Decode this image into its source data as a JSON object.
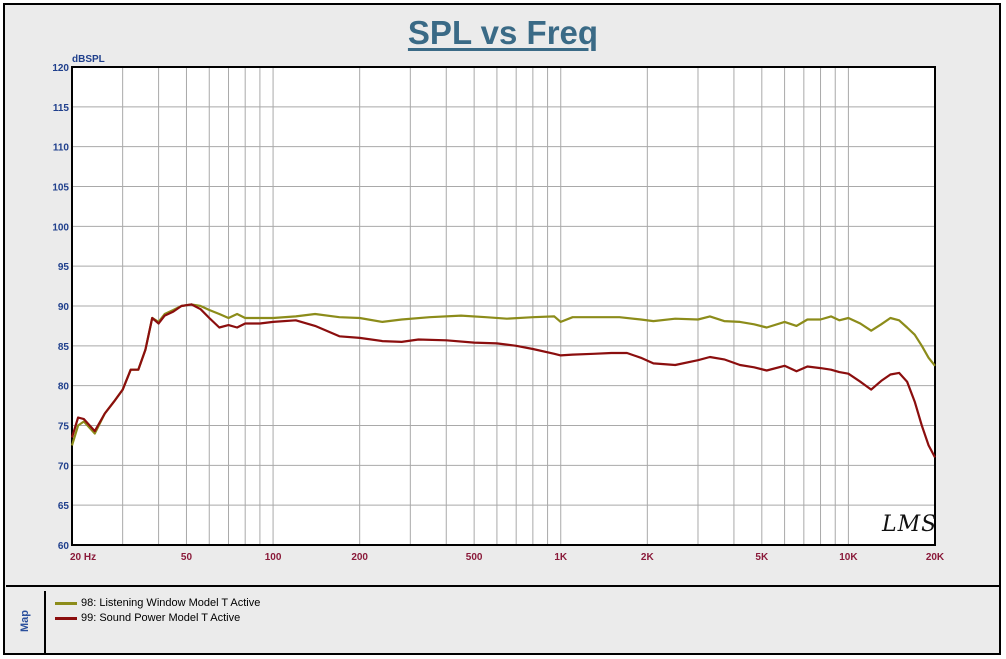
{
  "chart_data": {
    "type": "line",
    "title": "SPL vs Freq",
    "ylabel": "dBSPL",
    "xscale": "log",
    "xlim": [
      20,
      20000
    ],
    "ylim": [
      60,
      120
    ],
    "y_ticks": [
      60,
      65,
      70,
      75,
      80,
      85,
      90,
      95,
      100,
      105,
      110,
      115,
      120
    ],
    "x_ticks": [
      {
        "value": 20,
        "label": "20  Hz"
      },
      {
        "value": 50,
        "label": "50"
      },
      {
        "value": 100,
        "label": "100"
      },
      {
        "value": 200,
        "label": "200"
      },
      {
        "value": 500,
        "label": "500"
      },
      {
        "value": 1000,
        "label": "1K"
      },
      {
        "value": 2000,
        "label": "2K"
      },
      {
        "value": 5000,
        "label": "5K"
      },
      {
        "value": 10000,
        "label": "10K"
      },
      {
        "value": 20000,
        "label": "20K"
      }
    ],
    "grid": true,
    "legend_position": "bottom",
    "series": [
      {
        "name": "98: Listening Window Model T Active",
        "color": "#8c8c1a",
        "points": [
          [
            20,
            72.5
          ],
          [
            21,
            75
          ],
          [
            22,
            75.5
          ],
          [
            24,
            74
          ],
          [
            26,
            76.5
          ],
          [
            28,
            78
          ],
          [
            30,
            79.5
          ],
          [
            32,
            82
          ],
          [
            34,
            82
          ],
          [
            36,
            84.5
          ],
          [
            38,
            88.5
          ],
          [
            40,
            88
          ],
          [
            42,
            89
          ],
          [
            45,
            89.5
          ],
          [
            48,
            90
          ],
          [
            52,
            90.2
          ],
          [
            56,
            90
          ],
          [
            60,
            89.5
          ],
          [
            65,
            89
          ],
          [
            70,
            88.5
          ],
          [
            75,
            89
          ],
          [
            80,
            88.5
          ],
          [
            90,
            88.5
          ],
          [
            100,
            88.5
          ],
          [
            120,
            88.7
          ],
          [
            140,
            89
          ],
          [
            170,
            88.6
          ],
          [
            200,
            88.5
          ],
          [
            240,
            88
          ],
          [
            280,
            88.3
          ],
          [
            350,
            88.6
          ],
          [
            450,
            88.8
          ],
          [
            550,
            88.6
          ],
          [
            650,
            88.4
          ],
          [
            800,
            88.6
          ],
          [
            950,
            88.7
          ],
          [
            1000,
            88
          ],
          [
            1100,
            88.6
          ],
          [
            1300,
            88.6
          ],
          [
            1600,
            88.6
          ],
          [
            1900,
            88.3
          ],
          [
            2100,
            88.1
          ],
          [
            2500,
            88.4
          ],
          [
            3000,
            88.3
          ],
          [
            3300,
            88.7
          ],
          [
            3700,
            88.1
          ],
          [
            4200,
            88
          ],
          [
            4700,
            87.7
          ],
          [
            5200,
            87.3
          ],
          [
            6000,
            88
          ],
          [
            6600,
            87.5
          ],
          [
            7200,
            88.3
          ],
          [
            8000,
            88.3
          ],
          [
            8700,
            88.7
          ],
          [
            9300,
            88.2
          ],
          [
            10000,
            88.5
          ],
          [
            11000,
            87.8
          ],
          [
            12000,
            86.9
          ],
          [
            13000,
            87.7
          ],
          [
            14000,
            88.5
          ],
          [
            15000,
            88.2
          ],
          [
            16000,
            87.3
          ],
          [
            17000,
            86.4
          ],
          [
            18000,
            85
          ],
          [
            19000,
            83.5
          ],
          [
            20000,
            82.5
          ]
        ]
      },
      {
        "name": "99: Sound Power Model T Active",
        "color": "#8b0e0e",
        "points": [
          [
            20,
            73.5
          ],
          [
            21,
            76
          ],
          [
            22,
            75.8
          ],
          [
            24,
            74.3
          ],
          [
            26,
            76.5
          ],
          [
            28,
            78
          ],
          [
            30,
            79.5
          ],
          [
            32,
            82
          ],
          [
            34,
            82
          ],
          [
            36,
            84.5
          ],
          [
            38,
            88.5
          ],
          [
            40,
            87.8
          ],
          [
            42,
            88.8
          ],
          [
            45,
            89.3
          ],
          [
            48,
            90
          ],
          [
            52,
            90.2
          ],
          [
            56,
            89.6
          ],
          [
            60,
            88.5
          ],
          [
            65,
            87.3
          ],
          [
            70,
            87.6
          ],
          [
            75,
            87.3
          ],
          [
            80,
            87.8
          ],
          [
            90,
            87.8
          ],
          [
            100,
            88
          ],
          [
            120,
            88.2
          ],
          [
            140,
            87.5
          ],
          [
            170,
            86.2
          ],
          [
            200,
            86
          ],
          [
            240,
            85.6
          ],
          [
            280,
            85.5
          ],
          [
            320,
            85.8
          ],
          [
            400,
            85.7
          ],
          [
            500,
            85.4
          ],
          [
            600,
            85.3
          ],
          [
            700,
            85
          ],
          [
            800,
            84.6
          ],
          [
            950,
            84
          ],
          [
            1000,
            83.8
          ],
          [
            1100,
            83.9
          ],
          [
            1300,
            84
          ],
          [
            1500,
            84.1
          ],
          [
            1700,
            84.1
          ],
          [
            1900,
            83.5
          ],
          [
            2100,
            82.8
          ],
          [
            2500,
            82.6
          ],
          [
            3000,
            83.2
          ],
          [
            3300,
            83.6
          ],
          [
            3700,
            83.3
          ],
          [
            4200,
            82.6
          ],
          [
            4700,
            82.3
          ],
          [
            5200,
            81.9
          ],
          [
            6000,
            82.5
          ],
          [
            6600,
            81.8
          ],
          [
            7200,
            82.4
          ],
          [
            8000,
            82.2
          ],
          [
            8700,
            82
          ],
          [
            9300,
            81.7
          ],
          [
            10000,
            81.5
          ],
          [
            11000,
            80.5
          ],
          [
            12000,
            79.5
          ],
          [
            13000,
            80.6
          ],
          [
            14000,
            81.4
          ],
          [
            15000,
            81.6
          ],
          [
            16000,
            80.5
          ],
          [
            17000,
            78
          ],
          [
            18000,
            75
          ],
          [
            19000,
            72.5
          ],
          [
            20000,
            71
          ]
        ]
      }
    ]
  },
  "legend_tab_label": "Map",
  "logo_text": "LMS"
}
